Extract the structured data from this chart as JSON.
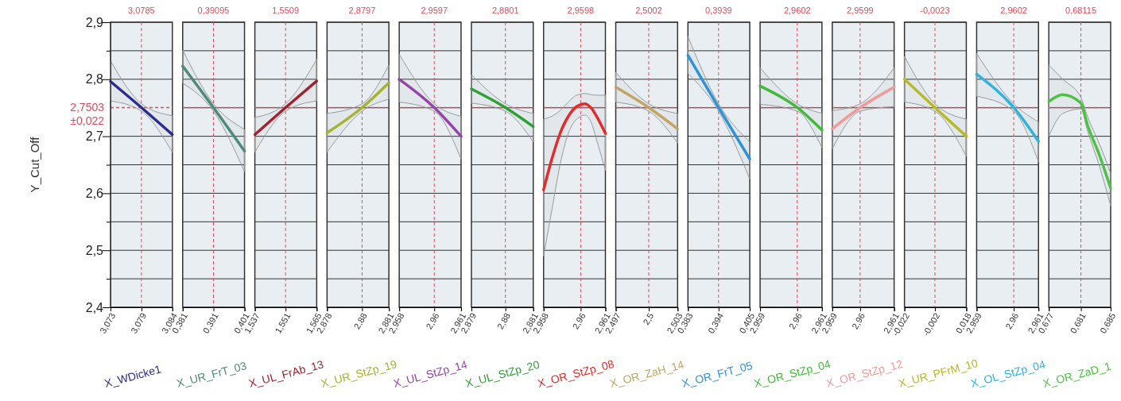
{
  "chart_data": [
    {
      "type": "line",
      "xlabel": "X_WDicke1",
      "ylabel": "Y_Cut_Off",
      "x": [
        3.073,
        3.0785,
        3.084
      ],
      "series": [
        {
          "color": "#2c2c8a",
          "values": [
            2.796,
            2.7503,
            2.703
          ],
          "upper": [
            2.832,
            2.757,
            2.736
          ],
          "lower": [
            2.762,
            2.744,
            2.672
          ]
        }
      ],
      "xlim": [
        3.073,
        3.084
      ],
      "xticks": [
        {
          "value": 3.073,
          "label": "3,073"
        },
        {
          "value": 3.0785,
          "label": "3,079"
        },
        {
          "value": 3.084,
          "label": "3,084"
        }
      ],
      "ylim": [
        2.4,
        2.9
      ],
      "yticks": [
        {
          "value": 2.4,
          "label": "2,4"
        },
        {
          "value": 2.45,
          "label": null
        },
        {
          "value": 2.5,
          "label": "2,5"
        },
        {
          "value": 2.55,
          "label": null
        },
        {
          "value": 2.6,
          "label": "2,6"
        },
        {
          "value": 2.65,
          "label": null
        },
        {
          "value": 2.7,
          "label": "2,7"
        },
        {
          "value": 2.8,
          "label": "2,8"
        },
        {
          "value": 2.85,
          "label": null
        },
        {
          "value": 2.9,
          "label": "2,9"
        }
      ],
      "grid": "y",
      "ref_lines": [
        {
          "axis": "x",
          "value": 3.0785,
          "label": "3,0785",
          "color": "#e04a5a",
          "line_style": "dashed"
        },
        {
          "axis": "y",
          "value": 2.7503,
          "label": "2,7503",
          "color": "#e04a5a",
          "line_style": "dashed"
        }
      ],
      "annotations": [
        "±0,022"
      ]
    },
    {
      "type": "line",
      "xlabel": "X_UR_FrT_03",
      "x": [
        0.381,
        0.39095,
        0.401
      ],
      "series": [
        {
          "color": "#4e8a7a",
          "values": [
            2.823,
            2.7503,
            2.674
          ],
          "upper": [
            2.851,
            2.757,
            2.712
          ],
          "lower": [
            2.793,
            2.744,
            2.638
          ]
        }
      ],
      "xlim": [
        0.381,
        0.401
      ],
      "xticks": [
        {
          "value": 0.381,
          "label": "0,381"
        },
        {
          "value": 0.39095,
          "label": "0,391"
        },
        {
          "value": 0.401,
          "label": "0,401"
        }
      ],
      "ylim": [
        2.4,
        2.9
      ],
      "yticks": [
        {
          "value": 2.4,
          "label": null
        },
        {
          "value": 2.45,
          "label": null
        },
        {
          "value": 2.5,
          "label": null
        },
        {
          "value": 2.55,
          "label": null
        },
        {
          "value": 2.6,
          "label": null
        },
        {
          "value": 2.65,
          "label": null
        },
        {
          "value": 2.7,
          "label": null
        },
        {
          "value": 2.75,
          "label": null
        },
        {
          "value": 2.8,
          "label": null
        },
        {
          "value": 2.85,
          "label": null
        },
        {
          "value": 2.9,
          "label": null
        }
      ],
      "grid": "y",
      "tick_labels": "x",
      "ref_lines": [
        {
          "axis": "x",
          "value": 0.39095,
          "label": "0,39095",
          "color": "#e04a5a",
          "line_style": "dashed"
        },
        {
          "axis": "y",
          "value": 2.7503,
          "color": "#e04a5a",
          "line_style": "dashed"
        }
      ]
    },
    {
      "type": "line",
      "xlabel": "X_UL_FrAb_13",
      "x": [
        1.537,
        1.5509,
        1.565
      ],
      "series": [
        {
          "color": "#a3222e",
          "values": [
            2.703,
            2.7503,
            2.797
          ],
          "upper": [
            2.733,
            2.757,
            2.835
          ],
          "lower": [
            2.672,
            2.744,
            2.762
          ]
        }
      ],
      "xlim": [
        1.537,
        1.565
      ],
      "xticks": [
        {
          "value": 1.537,
          "label": "1,537"
        },
        {
          "value": 1.5509,
          "label": "1,551"
        },
        {
          "value": 1.565,
          "label": "1,565"
        }
      ],
      "ylim": [
        2.4,
        2.9
      ],
      "yticks": [
        {
          "value": 2.4,
          "label": null
        },
        {
          "value": 2.45,
          "label": null
        },
        {
          "value": 2.5,
          "label": null
        },
        {
          "value": 2.55,
          "label": null
        },
        {
          "value": 2.6,
          "label": null
        },
        {
          "value": 2.65,
          "label": null
        },
        {
          "value": 2.7,
          "label": null
        },
        {
          "value": 2.75,
          "label": null
        },
        {
          "value": 2.8,
          "label": null
        },
        {
          "value": 2.85,
          "label": null
        },
        {
          "value": 2.9,
          "label": null
        }
      ],
      "grid": "y",
      "tick_labels": "x",
      "ref_lines": [
        {
          "axis": "x",
          "value": 1.5509,
          "label": "1,5509",
          "color": "#e04a5a",
          "line_style": "dashed"
        },
        {
          "axis": "y",
          "value": 2.7503,
          "color": "#e04a5a",
          "line_style": "dashed"
        }
      ]
    },
    {
      "type": "line",
      "xlabel": "X_UR_StZp_19",
      "x": [
        2.878,
        2.8797,
        2.881
      ],
      "series": [
        {
          "color": "#a8b232",
          "values": [
            2.706,
            2.7503,
            2.794
          ],
          "upper": [
            2.74,
            2.757,
            2.825
          ],
          "lower": [
            2.672,
            2.744,
            2.765
          ]
        }
      ],
      "xlim": [
        2.878,
        2.881
      ],
      "xticks": [
        {
          "value": 2.878,
          "label": "2,878"
        },
        {
          "value": 2.8797,
          "label": "2,88"
        },
        {
          "value": 2.881,
          "label": "2,881"
        }
      ],
      "ylim": [
        2.4,
        2.9
      ],
      "yticks": [
        {
          "value": 2.4,
          "label": null
        },
        {
          "value": 2.45,
          "label": null
        },
        {
          "value": 2.5,
          "label": null
        },
        {
          "value": 2.55,
          "label": null
        },
        {
          "value": 2.6,
          "label": null
        },
        {
          "value": 2.65,
          "label": null
        },
        {
          "value": 2.7,
          "label": null
        },
        {
          "value": 2.75,
          "label": null
        },
        {
          "value": 2.8,
          "label": null
        },
        {
          "value": 2.85,
          "label": null
        },
        {
          "value": 2.9,
          "label": null
        }
      ],
      "grid": "y",
      "tick_labels": "x",
      "ref_lines": [
        {
          "axis": "x",
          "value": 2.8797,
          "label": "2,8797",
          "color": "#e04a5a",
          "line_style": "dashed"
        },
        {
          "axis": "y",
          "value": 2.7503,
          "color": "#e04a5a",
          "line_style": "dashed"
        }
      ]
    },
    {
      "type": "line",
      "xlabel": "X_UL_StZp_14",
      "x": [
        2.958,
        2.9597,
        2.961
      ],
      "series": [
        {
          "color": "#9444a8",
          "values": [
            2.8,
            2.7503,
            2.7
          ],
          "upper": [
            2.844,
            2.757,
            2.735
          ],
          "lower": [
            2.76,
            2.744,
            2.66
          ]
        }
      ],
      "xlim": [
        2.958,
        2.961
      ],
      "xticks": [
        {
          "value": 2.958,
          "label": "2,958"
        },
        {
          "value": 2.9597,
          "label": "2,96"
        },
        {
          "value": 2.961,
          "label": "2,961"
        }
      ],
      "ylim": [
        2.4,
        2.9
      ],
      "yticks": [
        {
          "value": 2.4,
          "label": null
        },
        {
          "value": 2.45,
          "label": null
        },
        {
          "value": 2.5,
          "label": null
        },
        {
          "value": 2.55,
          "label": null
        },
        {
          "value": 2.6,
          "label": null
        },
        {
          "value": 2.65,
          "label": null
        },
        {
          "value": 2.7,
          "label": null
        },
        {
          "value": 2.75,
          "label": null
        },
        {
          "value": 2.8,
          "label": null
        },
        {
          "value": 2.85,
          "label": null
        },
        {
          "value": 2.9,
          "label": null
        }
      ],
      "grid": "y",
      "tick_labels": "x",
      "ref_lines": [
        {
          "axis": "x",
          "value": 2.9597,
          "label": "2,9597",
          "color": "#e04a5a",
          "line_style": "dashed"
        },
        {
          "axis": "y",
          "value": 2.7503,
          "color": "#e04a5a",
          "line_style": "dashed"
        }
      ]
    },
    {
      "type": "line",
      "xlabel": "X_UL_StZp_20",
      "x": [
        2.879,
        2.8801,
        2.881
      ],
      "series": [
        {
          "color": "#2f9e35",
          "values": [
            2.783,
            2.7503,
            2.717
          ],
          "upper": [
            2.808,
            2.757,
            2.74
          ],
          "lower": [
            2.758,
            2.744,
            2.69
          ]
        }
      ],
      "xlim": [
        2.879,
        2.881
      ],
      "xticks": [
        {
          "value": 2.879,
          "label": "2,879"
        },
        {
          "value": 2.8801,
          "label": "2,88"
        },
        {
          "value": 2.881,
          "label": "2,881"
        }
      ],
      "ylim": [
        2.4,
        2.9
      ],
      "yticks": [
        {
          "value": 2.4,
          "label": null
        },
        {
          "value": 2.45,
          "label": null
        },
        {
          "value": 2.5,
          "label": null
        },
        {
          "value": 2.55,
          "label": null
        },
        {
          "value": 2.6,
          "label": null
        },
        {
          "value": 2.65,
          "label": null
        },
        {
          "value": 2.7,
          "label": null
        },
        {
          "value": 2.75,
          "label": null
        },
        {
          "value": 2.8,
          "label": null
        },
        {
          "value": 2.85,
          "label": null
        },
        {
          "value": 2.9,
          "label": null
        }
      ],
      "grid": "y",
      "tick_labels": "x",
      "ref_lines": [
        {
          "axis": "x",
          "value": 2.8801,
          "label": "2,8801",
          "color": "#e04a5a",
          "line_style": "dashed"
        },
        {
          "axis": "y",
          "value": 2.7503,
          "color": "#e04a5a",
          "line_style": "dashed"
        }
      ]
    },
    {
      "type": "line",
      "xlabel": "X_OR_StZp_08",
      "x": [
        2.958,
        2.9584,
        2.9588,
        2.9592,
        2.9596,
        2.96,
        2.9603,
        2.9606,
        2.961
      ],
      "series": [
        {
          "color": "#e22b2b",
          "values": [
            2.606,
            2.66,
            2.705,
            2.735,
            2.752,
            2.757,
            2.75,
            2.733,
            2.705
          ],
          "upper": [
            2.73,
            2.735,
            2.745,
            2.76,
            2.772,
            2.775,
            2.773,
            2.772,
            2.772
          ],
          "lower": [
            2.49,
            2.57,
            2.65,
            2.705,
            2.73,
            2.737,
            2.725,
            2.69,
            2.64
          ]
        }
      ],
      "xlim": [
        2.958,
        2.961
      ],
      "xticks": [
        {
          "value": 2.958,
          "label": "2,958"
        },
        {
          "value": 2.9598,
          "label": "2,96"
        },
        {
          "value": 2.961,
          "label": "2,961"
        }
      ],
      "ylim": [
        2.4,
        2.9
      ],
      "yticks": [
        {
          "value": 2.4,
          "label": null
        },
        {
          "value": 2.45,
          "label": null
        },
        {
          "value": 2.5,
          "label": null
        },
        {
          "value": 2.55,
          "label": null
        },
        {
          "value": 2.6,
          "label": null
        },
        {
          "value": 2.65,
          "label": null
        },
        {
          "value": 2.7,
          "label": null
        },
        {
          "value": 2.75,
          "label": null
        },
        {
          "value": 2.8,
          "label": null
        },
        {
          "value": 2.85,
          "label": null
        },
        {
          "value": 2.9,
          "label": null
        }
      ],
      "grid": "y",
      "tick_labels": "x",
      "ref_lines": [
        {
          "axis": "x",
          "value": 2.9598,
          "label": "2,9598",
          "color": "#e04a5a",
          "line_style": "dashed"
        },
        {
          "axis": "y",
          "value": 2.7503,
          "color": "#e04a5a",
          "line_style": "dashed"
        }
      ]
    },
    {
      "type": "line",
      "xlabel": "X_OR_ZaH_14",
      "x": [
        2.497,
        2.5002,
        2.503
      ],
      "series": [
        {
          "color": "#c2a465",
          "values": [
            2.786,
            2.7503,
            2.713
          ],
          "upper": [
            2.812,
            2.757,
            2.74
          ],
          "lower": [
            2.76,
            2.744,
            2.688
          ]
        }
      ],
      "xlim": [
        2.497,
        2.503
      ],
      "xticks": [
        {
          "value": 2.497,
          "label": "2,497"
        },
        {
          "value": 2.5002,
          "label": "2,5"
        },
        {
          "value": 2.503,
          "label": "2,503"
        }
      ],
      "ylim": [
        2.4,
        2.9
      ],
      "yticks": [
        {
          "value": 2.4,
          "label": null
        },
        {
          "value": 2.45,
          "label": null
        },
        {
          "value": 2.5,
          "label": null
        },
        {
          "value": 2.55,
          "label": null
        },
        {
          "value": 2.6,
          "label": null
        },
        {
          "value": 2.65,
          "label": null
        },
        {
          "value": 2.7,
          "label": null
        },
        {
          "value": 2.75,
          "label": null
        },
        {
          "value": 2.8,
          "label": null
        },
        {
          "value": 2.85,
          "label": null
        },
        {
          "value": 2.9,
          "label": null
        }
      ],
      "grid": "y",
      "tick_labels": "x",
      "ref_lines": [
        {
          "axis": "x",
          "value": 2.5002,
          "label": "2,5002",
          "color": "#e04a5a",
          "line_style": "dashed"
        },
        {
          "axis": "y",
          "value": 2.7503,
          "color": "#e04a5a",
          "line_style": "dashed"
        }
      ]
    },
    {
      "type": "line",
      "xlabel": "X_OR_FrT_05",
      "x": [
        0.383,
        0.3939,
        0.405
      ],
      "series": [
        {
          "color": "#2e92d6",
          "values": [
            2.842,
            2.7503,
            2.66
          ],
          "upper": [
            2.875,
            2.757,
            2.69
          ],
          "lower": [
            2.81,
            2.744,
            2.625
          ]
        }
      ],
      "xlim": [
        0.383,
        0.405
      ],
      "xticks": [
        {
          "value": 0.383,
          "label": "0,383"
        },
        {
          "value": 0.3939,
          "label": "0,394"
        },
        {
          "value": 0.405,
          "label": "0,405"
        }
      ],
      "ylim": [
        2.4,
        2.9
      ],
      "yticks": [
        {
          "value": 2.4,
          "label": null
        },
        {
          "value": 2.45,
          "label": null
        },
        {
          "value": 2.5,
          "label": null
        },
        {
          "value": 2.55,
          "label": null
        },
        {
          "value": 2.6,
          "label": null
        },
        {
          "value": 2.65,
          "label": null
        },
        {
          "value": 2.7,
          "label": null
        },
        {
          "value": 2.75,
          "label": null
        },
        {
          "value": 2.8,
          "label": null
        },
        {
          "value": 2.85,
          "label": null
        },
        {
          "value": 2.9,
          "label": null
        }
      ],
      "grid": "y",
      "tick_labels": "x",
      "ref_lines": [
        {
          "axis": "x",
          "value": 0.3939,
          "label": "0,3939",
          "color": "#e04a5a",
          "line_style": "dashed"
        },
        {
          "axis": "y",
          "value": 2.7503,
          "color": "#e04a5a",
          "line_style": "dashed"
        }
      ]
    },
    {
      "type": "line",
      "xlabel": "X_OR_StZp_04",
      "x": [
        2.959,
        2.9602,
        2.961
      ],
      "series": [
        {
          "color": "#43b83a",
          "values": [
            2.788,
            2.7503,
            2.711
          ],
          "upper": [
            2.82,
            2.757,
            2.74
          ],
          "lower": [
            2.756,
            2.744,
            2.68
          ]
        }
      ],
      "xlim": [
        2.959,
        2.961
      ],
      "xticks": [
        {
          "value": 2.959,
          "label": "2,959"
        },
        {
          "value": 2.9602,
          "label": "2,96"
        },
        {
          "value": 2.961,
          "label": "2,961"
        }
      ],
      "ylim": [
        2.4,
        2.9
      ],
      "yticks": [
        {
          "value": 2.4,
          "label": null
        },
        {
          "value": 2.45,
          "label": null
        },
        {
          "value": 2.5,
          "label": null
        },
        {
          "value": 2.55,
          "label": null
        },
        {
          "value": 2.6,
          "label": null
        },
        {
          "value": 2.65,
          "label": null
        },
        {
          "value": 2.7,
          "label": null
        },
        {
          "value": 2.75,
          "label": null
        },
        {
          "value": 2.8,
          "label": null
        },
        {
          "value": 2.85,
          "label": null
        },
        {
          "value": 2.9,
          "label": null
        }
      ],
      "grid": "y",
      "tick_labels": "x",
      "ref_lines": [
        {
          "axis": "x",
          "value": 2.9602,
          "label": "2,9602",
          "color": "#e04a5a",
          "line_style": "dashed"
        },
        {
          "axis": "y",
          "value": 2.7503,
          "color": "#e04a5a",
          "line_style": "dashed"
        }
      ]
    },
    {
      "type": "line",
      "xlabel": "X_OR_StZp_12",
      "x": [
        2.959,
        2.9599,
        2.961
      ],
      "series": [
        {
          "color": "#f29a9a",
          "values": [
            2.713,
            2.7503,
            2.786
          ],
          "upper": [
            2.745,
            2.757,
            2.82
          ],
          "lower": [
            2.678,
            2.744,
            2.752
          ]
        }
      ],
      "xlim": [
        2.959,
        2.961
      ],
      "xticks": [
        {
          "value": 2.959,
          "label": "2,959"
        },
        {
          "value": 2.9599,
          "label": "2,96"
        },
        {
          "value": 2.961,
          "label": "2,961"
        }
      ],
      "ylim": [
        2.4,
        2.9
      ],
      "yticks": [
        {
          "value": 2.4,
          "label": null
        },
        {
          "value": 2.45,
          "label": null
        },
        {
          "value": 2.5,
          "label": null
        },
        {
          "value": 2.55,
          "label": null
        },
        {
          "value": 2.6,
          "label": null
        },
        {
          "value": 2.65,
          "label": null
        },
        {
          "value": 2.7,
          "label": null
        },
        {
          "value": 2.75,
          "label": null
        },
        {
          "value": 2.8,
          "label": null
        },
        {
          "value": 2.85,
          "label": null
        },
        {
          "value": 2.9,
          "label": null
        }
      ],
      "grid": "y",
      "tick_labels": "x",
      "ref_lines": [
        {
          "axis": "x",
          "value": 2.9599,
          "label": "2,9599",
          "color": "#e04a5a",
          "line_style": "dashed"
        },
        {
          "axis": "y",
          "value": 2.7503,
          "color": "#e04a5a",
          "line_style": "dashed"
        }
      ]
    },
    {
      "type": "line",
      "xlabel": "X_UR_PFrM_10",
      "x": [
        -0.022,
        -0.0023,
        0.018
      ],
      "series": [
        {
          "color": "#b9b825",
          "values": [
            2.8,
            2.7503,
            2.7
          ],
          "upper": [
            2.84,
            2.757,
            2.73
          ],
          "lower": [
            2.76,
            2.744,
            2.665
          ]
        }
      ],
      "xlim": [
        -0.022,
        0.018
      ],
      "xticks": [
        {
          "value": -0.022,
          "label": "-0,022"
        },
        {
          "value": -0.0023,
          "label": "-0,002"
        },
        {
          "value": 0.018,
          "label": "0,018"
        }
      ],
      "ylim": [
        2.4,
        2.9
      ],
      "yticks": [
        {
          "value": 2.4,
          "label": null
        },
        {
          "value": 2.45,
          "label": null
        },
        {
          "value": 2.5,
          "label": null
        },
        {
          "value": 2.55,
          "label": null
        },
        {
          "value": 2.6,
          "label": null
        },
        {
          "value": 2.65,
          "label": null
        },
        {
          "value": 2.7,
          "label": null
        },
        {
          "value": 2.75,
          "label": null
        },
        {
          "value": 2.8,
          "label": null
        },
        {
          "value": 2.85,
          "label": null
        },
        {
          "value": 2.9,
          "label": null
        }
      ],
      "grid": "y",
      "tick_labels": "x",
      "ref_lines": [
        {
          "axis": "x",
          "value": -0.0023,
          "label": "-0,0023",
          "color": "#e04a5a",
          "line_style": "dashed"
        },
        {
          "axis": "y",
          "value": 2.7503,
          "color": "#e04a5a",
          "line_style": "dashed"
        }
      ]
    },
    {
      "type": "line",
      "xlabel": "X_OL_StZp_04",
      "x": [
        2.959,
        2.9602,
        2.961
      ],
      "series": [
        {
          "color": "#2fb3dc",
          "values": [
            2.809,
            2.7503,
            2.691
          ],
          "upper": [
            2.845,
            2.757,
            2.725
          ],
          "lower": [
            2.77,
            2.744,
            2.655
          ]
        }
      ],
      "xlim": [
        2.959,
        2.961
      ],
      "xticks": [
        {
          "value": 2.959,
          "label": "2,959"
        },
        {
          "value": 2.9602,
          "label": "2,96"
        },
        {
          "value": 2.961,
          "label": "2,961"
        }
      ],
      "ylim": [
        2.4,
        2.9
      ],
      "yticks": [
        {
          "value": 2.4,
          "label": null
        },
        {
          "value": 2.45,
          "label": null
        },
        {
          "value": 2.5,
          "label": null
        },
        {
          "value": 2.55,
          "label": null
        },
        {
          "value": 2.6,
          "label": null
        },
        {
          "value": 2.65,
          "label": null
        },
        {
          "value": 2.7,
          "label": null
        },
        {
          "value": 2.75,
          "label": null
        },
        {
          "value": 2.8,
          "label": null
        },
        {
          "value": 2.85,
          "label": null
        },
        {
          "value": 2.9,
          "label": null
        }
      ],
      "grid": "y",
      "tick_labels": "x",
      "ref_lines": [
        {
          "axis": "x",
          "value": 2.9602,
          "label": "2,9602",
          "color": "#e04a5a",
          "line_style": "dashed"
        },
        {
          "axis": "y",
          "value": 2.7503,
          "color": "#e04a5a",
          "line_style": "dashed"
        }
      ]
    },
    {
      "type": "line",
      "xlabel": "X_OR_ZaD_1",
      "x": [
        0.677,
        0.6788,
        0.68115,
        0.682,
        0.6836,
        0.685
      ],
      "series": [
        {
          "color": "#4cc244",
          "values": [
            2.761,
            2.773,
            2.758,
            2.72,
            2.665,
            2.609
          ],
          "upper": [
            2.825,
            2.8,
            2.768,
            2.735,
            2.685,
            2.635
          ],
          "lower": [
            2.7,
            2.74,
            2.748,
            2.71,
            2.645,
            2.578
          ]
        }
      ],
      "xlim": [
        0.677,
        0.685
      ],
      "xticks": [
        {
          "value": 0.677,
          "label": "0,677"
        },
        {
          "value": 0.68115,
          "label": "0,681"
        },
        {
          "value": 0.685,
          "label": "0,685"
        }
      ],
      "ylim": [
        2.4,
        2.9
      ],
      "yticks": [
        {
          "value": 2.4,
          "label": null
        },
        {
          "value": 2.45,
          "label": null
        },
        {
          "value": 2.5,
          "label": null
        },
        {
          "value": 2.55,
          "label": null
        },
        {
          "value": 2.6,
          "label": null
        },
        {
          "value": 2.65,
          "label": null
        },
        {
          "value": 2.7,
          "label": null
        },
        {
          "value": 2.75,
          "label": null
        },
        {
          "value": 2.8,
          "label": null
        },
        {
          "value": 2.85,
          "label": null
        },
        {
          "value": 2.9,
          "label": null
        }
      ],
      "grid": "y",
      "tick_labels": "x",
      "ref_lines": [
        {
          "axis": "x",
          "value": 0.68115,
          "label": "0,68115",
          "color": "#e04a5a",
          "line_style": "dashed"
        },
        {
          "axis": "y",
          "value": 2.7503,
          "color": "#e04a5a",
          "line_style": "dashed"
        }
      ]
    }
  ]
}
